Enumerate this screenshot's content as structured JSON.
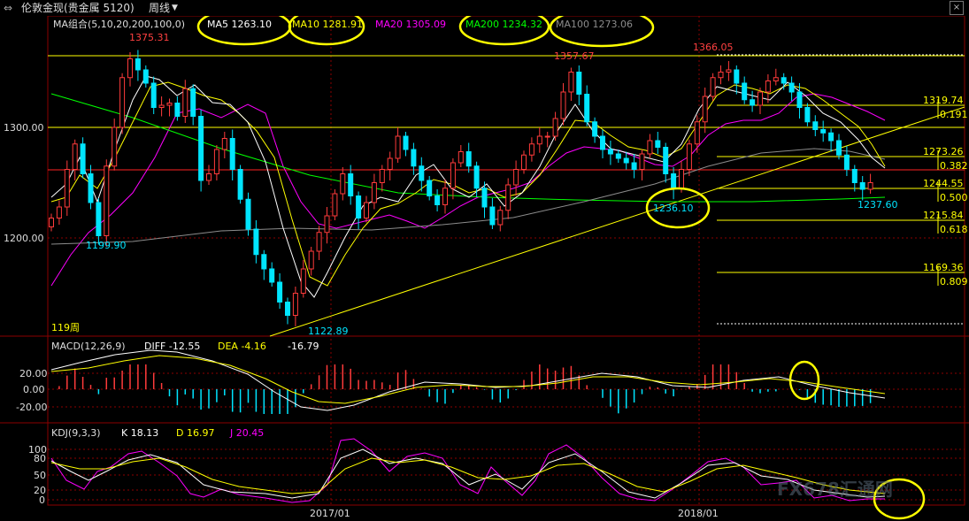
{
  "toolbar": {
    "instrument": "伦敦金现(贵金属 5120)",
    "period": "周线",
    "close_mark": "×"
  },
  "colors": {
    "bg": "#000000",
    "up": "#ff3b3b",
    "down": "#00e5ff",
    "ma5": "#ffffff",
    "ma10": "#ffff00",
    "ma20": "#ff00ff",
    "ma200": "#00ff00",
    "ma100": "#808080",
    "fib": "#ffff00",
    "red_line": "#ff2222",
    "grid": "#8b0000"
  },
  "main_panel": {
    "legend_prefix": "MA组合(5,10,20,200,100,0)",
    "ma5": "MA5 1263.10",
    "ma10": "MA10 1281.91",
    "ma20": "MA20 1305.09",
    "ma200": "MA200 1234.32",
    "ma100": "MA100 1273.06",
    "y_ticks": [
      "1300.00",
      "1200.00"
    ],
    "bars_label": "119周",
    "annotations": [
      "1375.31",
      "1199.90",
      "1122.89",
      "1357.67",
      "1366.05",
      "1236.10",
      "1237.60"
    ],
    "fib_levels": [
      {
        "value": "1319.74",
        "ratio": "0.191"
      },
      {
        "value": "1273.26",
        "ratio": "0.382"
      },
      {
        "value": "1244.55",
        "ratio": "0.500"
      },
      {
        "value": "1215.84",
        "ratio": "0.618"
      },
      {
        "value": "1169.36",
        "ratio": "0.809"
      }
    ]
  },
  "macd_panel": {
    "legend": "MACD(12,26,9)",
    "diff": "DIFF -12.55",
    "dea": "DEA -4.16",
    "macd": "-16.79",
    "y_ticks": [
      "20.00",
      "0.00",
      "-20.00"
    ]
  },
  "kdj_panel": {
    "legend": "KDJ(9,3,3)",
    "k": "K 18.13",
    "d": "D 16.97",
    "j": "J 20.45",
    "y_ticks": [
      "100",
      "80",
      "50",
      "20",
      "0"
    ]
  },
  "x_axis": {
    "ticks": [
      "2017/01",
      "2018/01"
    ]
  },
  "watermark": "FX678汇通网",
  "chart_data": {
    "type": "candlestick",
    "period": "weekly",
    "y_ticks": [
      1300,
      1200
    ],
    "highlights": {
      "high1": 1375.31,
      "low1": 1199.9,
      "low2": 1122.89,
      "high2": 1357.67,
      "high3": 1366.05,
      "low3": 1236.1,
      "last_low": 1237.6
    },
    "fib_retracement": [
      {
        "ratio": 0.191,
        "price": 1319.74
      },
      {
        "ratio": 0.382,
        "price": 1273.26
      },
      {
        "ratio": 0.5,
        "price": 1244.55
      },
      {
        "ratio": 0.618,
        "price": 1215.84
      },
      {
        "ratio": 0.809,
        "price": 1169.36
      }
    ],
    "ma_values": {
      "MA5": 1263.1,
      "MA10": 1281.91,
      "MA20": 1305.09,
      "MA200": 1234.32,
      "MA100": 1273.06
    },
    "macd": {
      "DIFF": -12.55,
      "DEA": -4.16,
      "MACD": -16.79
    },
    "kdj": {
      "K": 18.13,
      "D": 16.97,
      "J": 20.45
    },
    "close_path": [
      1218,
      1228,
      1262,
      1285,
      1258,
      1232,
      1202,
      1265,
      1300,
      1345,
      1362,
      1352,
      1340,
      1318,
      1320,
      1322,
      1310,
      1335,
      1310,
      1252,
      1258,
      1280,
      1290,
      1262,
      1235,
      1208,
      1185,
      1172,
      1160,
      1142,
      1130,
      1150,
      1172,
      1188,
      1205,
      1220,
      1240,
      1258,
      1238,
      1218,
      1232,
      1250,
      1262,
      1272,
      1292,
      1280,
      1265,
      1252,
      1238,
      1230,
      1245,
      1268,
      1278,
      1265,
      1245,
      1228,
      1212,
      1225,
      1248,
      1262,
      1275,
      1285,
      1292,
      1292,
      1308,
      1332,
      1350,
      1330,
      1305,
      1292,
      1280,
      1276,
      1272,
      1268,
      1262,
      1276,
      1288,
      1282,
      1258,
      1245,
      1262,
      1285,
      1305,
      1328,
      1345,
      1350,
      1352,
      1340,
      1325,
      1320,
      1332,
      1342,
      1345,
      1340,
      1332,
      1318,
      1305,
      1298,
      1295,
      1288,
      1275,
      1262,
      1250,
      1244,
      1250
    ]
  }
}
